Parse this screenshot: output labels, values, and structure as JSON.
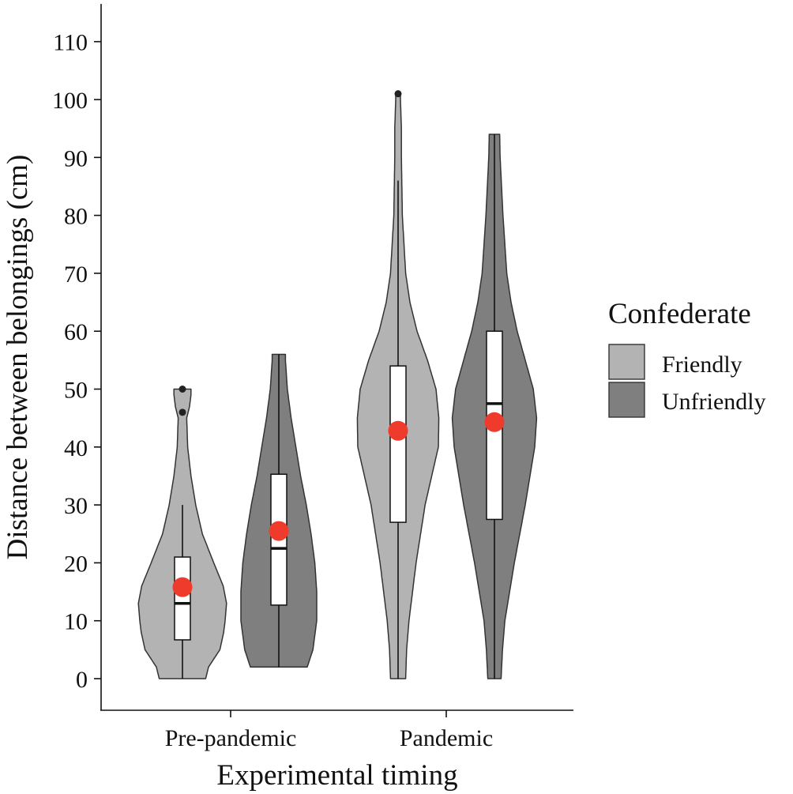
{
  "chart_data": {
    "type": "violin",
    "title": "",
    "xlabel": "Experimental timing",
    "ylabel": "Distance between belongings (cm)",
    "ylim": [
      -8,
      115
    ],
    "yticks": [
      0,
      10,
      20,
      30,
      40,
      50,
      60,
      70,
      80,
      90,
      100,
      110
    ],
    "categories": [
      "Pre-pandemic",
      "Pandemic"
    ],
    "legend": {
      "title": "Confederate",
      "position": "right",
      "entries": [
        {
          "label": "Friendly",
          "color": "#b3b3b3"
        },
        {
          "label": "Unfriendly",
          "color": "#7f7f7f"
        }
      ]
    },
    "mean_marker_color": "#ef3b2c",
    "groups": [
      {
        "name": "Pre-pandemic / Friendly",
        "category": "Pre-pandemic",
        "series": "Friendly",
        "min": 0,
        "q1": 6.7,
        "median": 13,
        "q3": 21,
        "whisker_low": 0,
        "whisker_high": 30,
        "mean": 15.8,
        "max": 50,
        "outliers": [
          46,
          50
        ],
        "density": [
          [
            0,
            0.49
          ],
          [
            2,
            0.55
          ],
          [
            5,
            0.79
          ],
          [
            8,
            0.87
          ],
          [
            10,
            0.9
          ],
          [
            13,
            0.93
          ],
          [
            16,
            0.86
          ],
          [
            20,
            0.66
          ],
          [
            25,
            0.42
          ],
          [
            30,
            0.28
          ],
          [
            35,
            0.18
          ],
          [
            40,
            0.11
          ],
          [
            45,
            0.09
          ],
          [
            47,
            0.15
          ],
          [
            49,
            0.18
          ],
          [
            50,
            0.18
          ]
        ]
      },
      {
        "name": "Pre-pandemic / Unfriendly",
        "category": "Pre-pandemic",
        "series": "Unfriendly",
        "min": 2,
        "q1": 12.7,
        "median": 22.5,
        "q3": 35.3,
        "whisker_low": 2,
        "whisker_high": 56,
        "mean": 25.5,
        "max": 56,
        "outliers": [],
        "density": [
          [
            2,
            0.6
          ],
          [
            5,
            0.72
          ],
          [
            10,
            0.8
          ],
          [
            15,
            0.8
          ],
          [
            20,
            0.76
          ],
          [
            25,
            0.68
          ],
          [
            30,
            0.58
          ],
          [
            35,
            0.46
          ],
          [
            40,
            0.36
          ],
          [
            45,
            0.26
          ],
          [
            50,
            0.18
          ],
          [
            55,
            0.14
          ],
          [
            56,
            0.14
          ]
        ]
      },
      {
        "name": "Pandemic / Friendly",
        "category": "Pandemic",
        "series": "Friendly",
        "min": 0,
        "q1": 27,
        "median": 42.8,
        "q3": 54,
        "whisker_low": 0,
        "whisker_high": 86,
        "mean": 42.8,
        "max": 101,
        "outliers": [
          101
        ],
        "density": [
          [
            0,
            0.16
          ],
          [
            5,
            0.18
          ],
          [
            10,
            0.23
          ],
          [
            20,
            0.38
          ],
          [
            30,
            0.57
          ],
          [
            40,
            0.85
          ],
          [
            45,
            0.86
          ],
          [
            50,
            0.8
          ],
          [
            55,
            0.62
          ],
          [
            60,
            0.4
          ],
          [
            65,
            0.25
          ],
          [
            70,
            0.16
          ],
          [
            80,
            0.09
          ],
          [
            90,
            0.07
          ],
          [
            95,
            0.07
          ],
          [
            100,
            0.05
          ],
          [
            101,
            0.05
          ]
        ]
      },
      {
        "name": "Pandemic / Unfriendly",
        "category": "Pandemic",
        "series": "Unfriendly",
        "min": 0,
        "q1": 27.5,
        "median": 47.5,
        "q3": 60,
        "whisker_low": 0,
        "whisker_high": 94,
        "mean": 44.3,
        "max": 94,
        "outliers": [],
        "density": [
          [
            0,
            0.14
          ],
          [
            5,
            0.17
          ],
          [
            10,
            0.22
          ],
          [
            20,
            0.42
          ],
          [
            30,
            0.65
          ],
          [
            40,
            0.85
          ],
          [
            45,
            0.89
          ],
          [
            50,
            0.82
          ],
          [
            55,
            0.65
          ],
          [
            60,
            0.48
          ],
          [
            65,
            0.35
          ],
          [
            70,
            0.26
          ],
          [
            80,
            0.18
          ],
          [
            90,
            0.12
          ],
          [
            94,
            0.11
          ]
        ]
      }
    ]
  }
}
